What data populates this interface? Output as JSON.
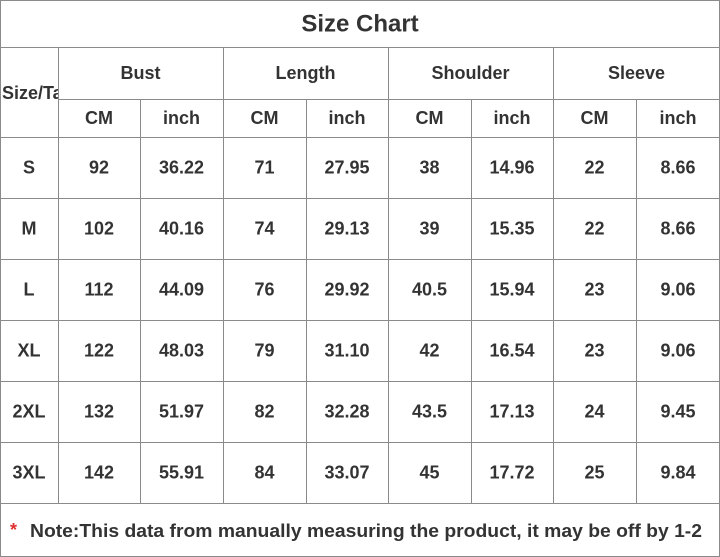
{
  "title": "Size Chart",
  "table": {
    "header": [
      "Size/Ta",
      "Bust",
      "Length",
      "Shoulder",
      "Sleeve"
    ],
    "units": [
      "CM",
      "inch",
      "CM",
      "inch",
      "CM",
      "inch",
      "CM",
      "inch"
    ],
    "rows": [
      [
        "S",
        "92",
        "36.22",
        "71",
        "27.95",
        "38",
        "14.96",
        "22",
        "8.66"
      ],
      [
        "M",
        "102",
        "40.16",
        "74",
        "29.13",
        "39",
        "15.35",
        "22",
        "8.66"
      ],
      [
        "L",
        "112",
        "44.09",
        "76",
        "29.92",
        "40.5",
        "15.94",
        "23",
        "9.06"
      ],
      [
        "XL",
        "122",
        "48.03",
        "79",
        "31.10",
        "42",
        "16.54",
        "23",
        "9.06"
      ],
      [
        "2XL",
        "132",
        "51.97",
        "82",
        "32.28",
        "43.5",
        "17.13",
        "24",
        "9.45"
      ],
      [
        "3XL",
        "142",
        "55.91",
        "84",
        "33.07",
        "45",
        "17.72",
        "25",
        "9.84"
      ]
    ]
  },
  "note": {
    "marker": "*",
    "text": "Note:This data from manually measuring the product, it may be off by 1-2"
  }
}
